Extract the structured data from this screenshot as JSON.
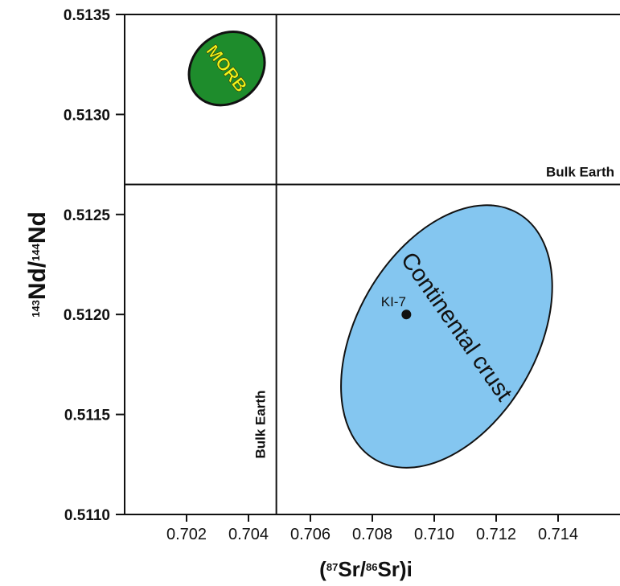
{
  "chart_data": {
    "type": "scatter",
    "xlabel": {
      "pre": "(",
      "sup1": "87",
      "mid": "Sr/",
      "sup2": "86",
      "post": "Sr)i"
    },
    "ylabel": {
      "sup1": "143",
      "mid": "Nd/",
      "sup2": "144",
      "post": "Nd"
    },
    "xlim": [
      0.7,
      0.716
    ],
    "ylim": [
      0.511,
      0.5135
    ],
    "xticks": [
      "0.702",
      "0.704",
      "0.706",
      "0.708",
      "0.710",
      "0.712",
      "0.714"
    ],
    "xtick_values": [
      0.702,
      0.704,
      0.706,
      0.708,
      0.71,
      0.712,
      0.714
    ],
    "yticks": [
      "0.5110",
      "0.5115",
      "0.5120",
      "0.5125",
      "0.5130",
      "0.5135"
    ],
    "ytick_values": [
      0.511,
      0.5115,
      0.512,
      0.5125,
      0.513,
      0.5135
    ],
    "reference_lines": [
      {
        "orientation": "horizontal",
        "value": 0.51265,
        "label": "Bulk Earth"
      },
      {
        "orientation": "vertical",
        "value": 0.7049,
        "label": "Bulk Earth"
      }
    ],
    "fields": [
      {
        "label": "MORB",
        "color": "#1e8c2c",
        "label_color": "#f2f51a",
        "center": [
          0.7033,
          0.51323
        ],
        "semi_x": 0.0013,
        "semi_y": 0.00017,
        "rotation_deg": -40
      },
      {
        "label": "Continental crust",
        "color": "#84c6f0",
        "label_color": "#111111",
        "center": [
          0.7104,
          0.51189
        ],
        "semi_x": 0.0046,
        "semi_y": 0.00045,
        "rotation_deg": -60
      }
    ],
    "points": [
      {
        "label": "KI-7",
        "x": 0.7091,
        "y": 0.512
      }
    ],
    "grid": false
  }
}
